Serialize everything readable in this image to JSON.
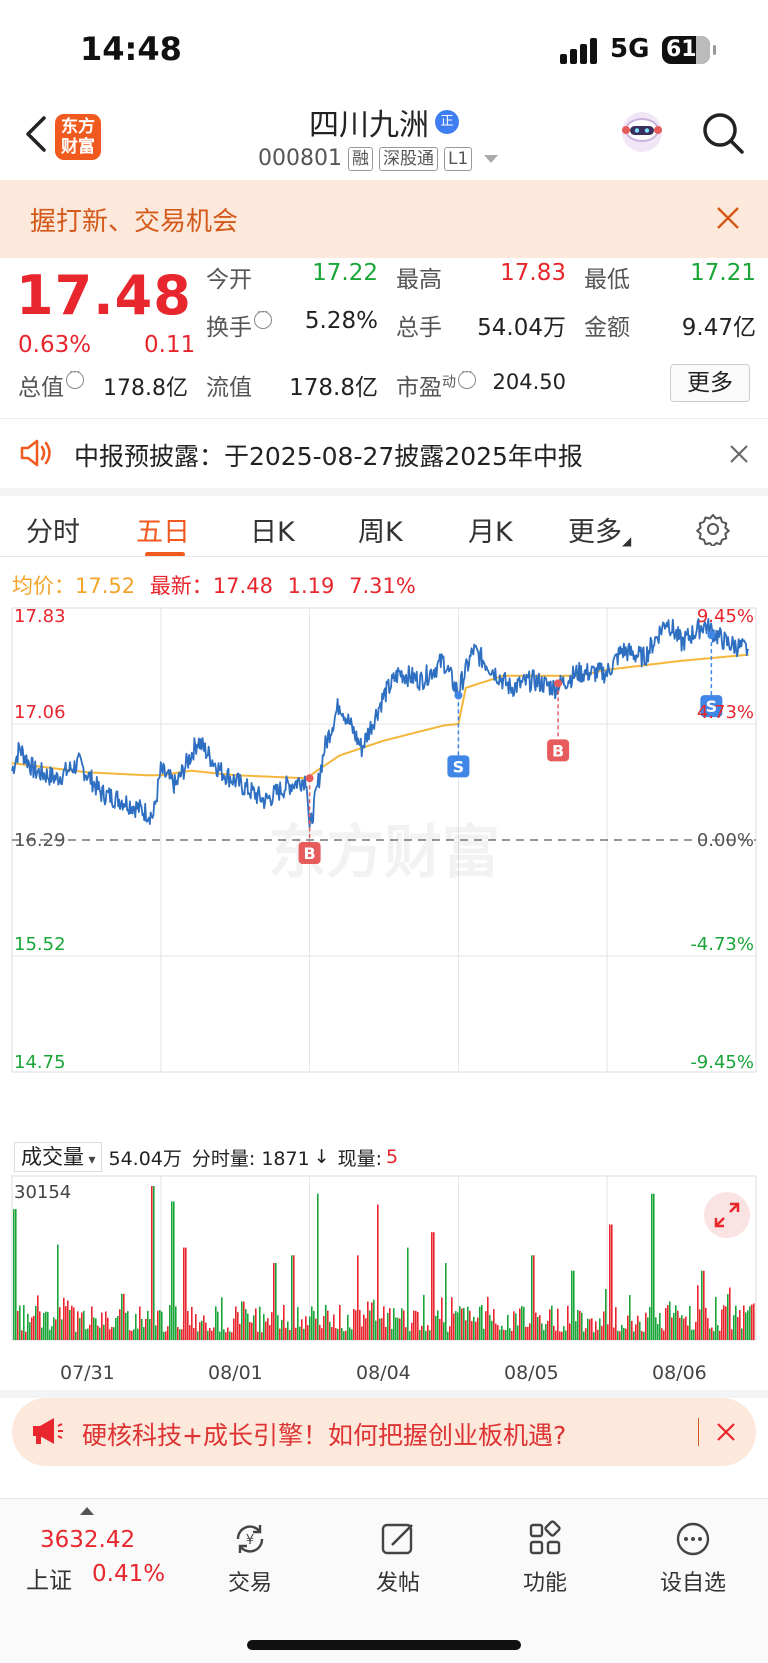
{
  "status_bar": {
    "time": "14:48",
    "network": "5G",
    "battery": "61"
  },
  "header": {
    "logo_line1": "东方",
    "logo_line2": "财富",
    "stock_name": "四川九洲",
    "zheng_badge": "正",
    "stock_code": "000801",
    "tags": [
      "融",
      "深股通",
      "L1"
    ]
  },
  "promo_banner": {
    "text": "握打新、交易机会"
  },
  "quote": {
    "price": "17.48",
    "change_pct": "0.63%",
    "change": "0.11",
    "fields": {
      "open_label": "今开",
      "open": "17.22",
      "high_label": "最高",
      "high": "17.83",
      "low_label": "最低",
      "low": "17.21",
      "turnover_label": "换手",
      "turnover": "5.28%",
      "volume_label": "总手",
      "volume": "54.04万",
      "amount_label": "金额",
      "amount": "9.47亿",
      "mktcap_label": "总值",
      "mktcap": "178.8亿",
      "float_label": "流值",
      "float": "178.8亿",
      "pe_label": "市盈",
      "pe_sup": "动",
      "pe": "204.50"
    },
    "more_button": "更多"
  },
  "notice": {
    "text": "中报预披露：于2025-08-27披露2025年中报"
  },
  "tabs": [
    {
      "label": "分时",
      "active": false
    },
    {
      "label": "五日",
      "active": true
    },
    {
      "label": "日K",
      "active": false
    },
    {
      "label": "周K",
      "active": false
    },
    {
      "label": "月K",
      "active": false
    },
    {
      "label": "更多",
      "active": false
    }
  ],
  "chart_header": {
    "avg_label": "均价：",
    "avg_value": "17.52",
    "latest_label": "最新：",
    "latest_value": "17.48",
    "change": "1.19",
    "change_pct": "7.31%"
  },
  "chart_data": {
    "type": "line",
    "title": "",
    "watermark": "东方财富",
    "y_ticks_left": [
      "17.83",
      "17.06",
      "16.29",
      "15.52",
      "14.75"
    ],
    "y_ticks_right": [
      "9.45%",
      "4.73%",
      "0.00%",
      "-4.73%",
      "-9.45%"
    ],
    "ylim": [
      14.75,
      17.83
    ],
    "prev_close": 16.29,
    "days": [
      "07/31",
      "08/01",
      "08/04",
      "08/05",
      "08/06"
    ],
    "price_series_keypoints": [
      [
        0,
        16.75
      ],
      [
        0.05,
        16.9
      ],
      [
        0.15,
        16.75
      ],
      [
        0.3,
        16.7
      ],
      [
        0.45,
        16.8
      ],
      [
        0.6,
        16.6
      ],
      [
        0.75,
        16.55
      ],
      [
        0.95,
        16.45
      ],
      [
        1.0,
        16.75
      ],
      [
        1.1,
        16.65
      ],
      [
        1.25,
        16.95
      ],
      [
        1.4,
        16.75
      ],
      [
        1.55,
        16.65
      ],
      [
        1.7,
        16.55
      ],
      [
        1.85,
        16.65
      ],
      [
        1.98,
        16.7
      ],
      [
        2.0,
        16.35
      ],
      [
        2.1,
        16.9
      ],
      [
        2.2,
        17.2
      ],
      [
        2.35,
        16.9
      ],
      [
        2.5,
        17.25
      ],
      [
        2.6,
        17.4
      ],
      [
        2.75,
        17.35
      ],
      [
        2.9,
        17.48
      ],
      [
        2.98,
        17.3
      ],
      [
        3.0,
        17.28
      ],
      [
        3.1,
        17.55
      ],
      [
        3.2,
        17.45
      ],
      [
        3.35,
        17.3
      ],
      [
        3.5,
        17.35
      ],
      [
        3.65,
        17.3
      ],
      [
        3.8,
        17.4
      ],
      [
        3.98,
        17.4
      ],
      [
        4.0,
        17.4
      ],
      [
        4.1,
        17.55
      ],
      [
        4.25,
        17.5
      ],
      [
        4.4,
        17.75
      ],
      [
        4.5,
        17.6
      ],
      [
        4.65,
        17.72
      ],
      [
        4.8,
        17.6
      ],
      [
        4.95,
        17.55
      ]
    ],
    "avg_series_keypoints": [
      [
        0,
        16.8
      ],
      [
        0.5,
        16.74
      ],
      [
        0.9,
        16.72
      ],
      [
        1.0,
        16.72
      ],
      [
        1.2,
        16.75
      ],
      [
        1.5,
        16.72
      ],
      [
        1.98,
        16.7
      ],
      [
        2.05,
        16.75
      ],
      [
        2.2,
        16.85
      ],
      [
        2.5,
        16.95
      ],
      [
        2.9,
        17.05
      ],
      [
        3.0,
        17.06
      ],
      [
        3.05,
        17.3
      ],
      [
        3.3,
        17.38
      ],
      [
        3.8,
        17.38
      ],
      [
        4.0,
        17.42
      ],
      [
        4.5,
        17.48
      ],
      [
        4.95,
        17.52
      ]
    ],
    "trade_markers": [
      {
        "type": "B",
        "day_x": 2.0,
        "price": 16.7
      },
      {
        "type": "S",
        "day_x": 3.0,
        "price": 17.25
      },
      {
        "type": "B",
        "day_x": 3.67,
        "price": 17.33
      },
      {
        "type": "S",
        "day_x": 4.7,
        "price": 17.65
      }
    ]
  },
  "volume": {
    "selector": "成交量",
    "total": "54.04万",
    "tick_label": "分时量: 1871",
    "arrow": "↓",
    "now_label": "现量:",
    "now_value": "5",
    "max_tick": "30154"
  },
  "ad_bar": {
    "text": "硬核科技+成长引擎！如何把握创业板机遇?"
  },
  "bottom_nav": {
    "index_value": "3632.42",
    "index_name": "上证",
    "index_pct": "0.41%",
    "items": [
      {
        "label": "交易",
        "icon": "trade-icon"
      },
      {
        "label": "发帖",
        "icon": "post-icon"
      },
      {
        "label": "功能",
        "icon": "apps-icon"
      },
      {
        "label": "设自选",
        "icon": "more-icon"
      }
    ]
  },
  "colors": {
    "red": "#e8262d",
    "green": "#1aa538",
    "orange": "#f05a1e",
    "price_line": "#2e6fc2",
    "avg_line": "#f4b63a"
  }
}
